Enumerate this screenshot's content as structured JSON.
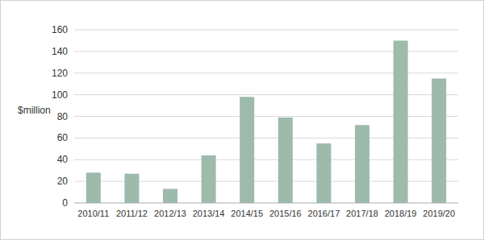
{
  "chart_data": {
    "type": "bar",
    "y_label": "$million",
    "categories": [
      "2010/11",
      "2011/12",
      "2012/13",
      "2013/14",
      "2014/15",
      "2015/16",
      "2016/17",
      "2017/18",
      "2018/19",
      "2019/20"
    ],
    "values": [
      28,
      27,
      13,
      44,
      98,
      79,
      55,
      72,
      150,
      115
    ],
    "color": "#9dbaab",
    "ylim": [
      0,
      160
    ],
    "yticks": [
      0,
      20,
      40,
      60,
      80,
      100,
      120,
      140,
      160
    ],
    "grid": true
  }
}
